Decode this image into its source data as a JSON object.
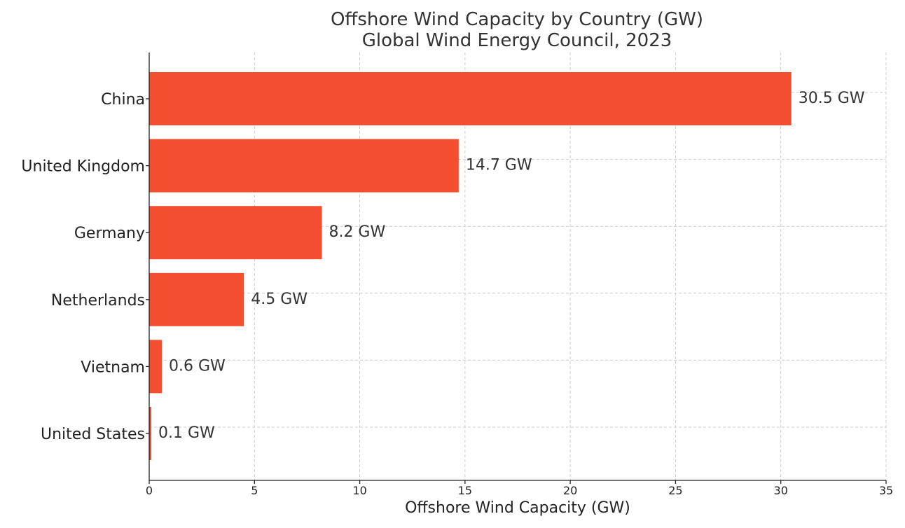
{
  "chart_data": {
    "type": "bar",
    "orientation": "horizontal",
    "title": "Offshore Wind Capacity by Country (GW)",
    "subtitle": "Global Wind Energy Council, 2023",
    "xlabel": "Offshore Wind Capacity (GW)",
    "ylabel": "",
    "categories": [
      "China",
      "United Kingdom",
      "Germany",
      "Netherlands",
      "Vietnam",
      "United States"
    ],
    "values": [
      30.5,
      14.7,
      8.2,
      4.5,
      0.6,
      0.1
    ],
    "data_labels": [
      "30.5 GW",
      "14.7 GW",
      "8.2 GW",
      "4.5 GW",
      "0.6 GW",
      "0.1 GW"
    ],
    "xlim": [
      0,
      35
    ],
    "xticks": [
      0,
      5,
      10,
      15,
      20,
      25,
      30,
      35
    ],
    "grid": true,
    "bar_color": "#f34e2f"
  }
}
